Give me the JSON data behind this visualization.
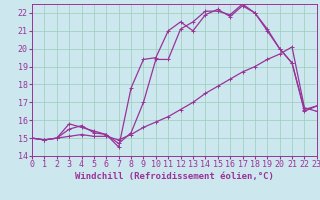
{
  "bg_color": "#cce8ee",
  "line_color": "#993399",
  "grid_color": "#99ccbb",
  "xlim": [
    0,
    23
  ],
  "ylim": [
    14,
    22.5
  ],
  "yticks": [
    14,
    15,
    16,
    17,
    18,
    19,
    20,
    21,
    22
  ],
  "xticks": [
    0,
    1,
    2,
    3,
    4,
    5,
    6,
    7,
    8,
    9,
    10,
    11,
    12,
    13,
    14,
    15,
    16,
    17,
    18,
    19,
    20,
    21,
    22,
    23
  ],
  "line1_x": [
    0,
    1,
    2,
    3,
    4,
    5,
    6,
    7,
    8,
    9,
    10,
    11,
    12,
    13,
    14,
    15,
    16,
    17,
    18,
    19,
    20,
    21,
    22,
    23
  ],
  "line1_y": [
    15.0,
    14.9,
    15.0,
    15.1,
    15.2,
    15.1,
    15.1,
    14.9,
    15.2,
    15.6,
    15.9,
    16.2,
    16.6,
    17.0,
    17.5,
    17.9,
    18.3,
    18.7,
    19.0,
    19.4,
    19.7,
    20.1,
    16.7,
    16.5
  ],
  "line2_x": [
    0,
    1,
    2,
    3,
    4,
    5,
    6,
    7,
    8,
    9,
    10,
    11,
    12,
    13,
    14,
    15,
    16,
    17,
    18,
    19,
    20,
    21,
    22,
    23
  ],
  "line2_y": [
    15.0,
    14.9,
    15.0,
    15.5,
    15.7,
    15.3,
    15.2,
    14.5,
    17.8,
    19.4,
    19.5,
    21.0,
    21.5,
    21.0,
    21.9,
    22.2,
    21.8,
    22.4,
    22.0,
    21.1,
    20.0,
    19.2,
    16.6,
    16.8
  ],
  "line3_x": [
    0,
    1,
    2,
    3,
    4,
    5,
    6,
    7,
    8,
    9,
    10,
    11,
    12,
    13,
    14,
    15,
    16,
    17,
    18,
    19,
    20,
    21,
    22,
    23
  ],
  "line3_y": [
    15.0,
    14.9,
    15.0,
    15.8,
    15.6,
    15.4,
    15.2,
    14.7,
    15.3,
    17.0,
    19.4,
    19.4,
    21.1,
    21.5,
    22.1,
    22.1,
    21.9,
    22.5,
    22.0,
    21.0,
    20.0,
    19.2,
    16.5,
    16.8
  ],
  "xlabel": "Windchill (Refroidissement éolien,°C)",
  "xlabel_fontsize": 6.5,
  "tick_fontsize": 6.0,
  "linewidth": 0.9,
  "markersize": 3.0,
  "figwidth": 3.2,
  "figheight": 2.0,
  "dpi": 100
}
